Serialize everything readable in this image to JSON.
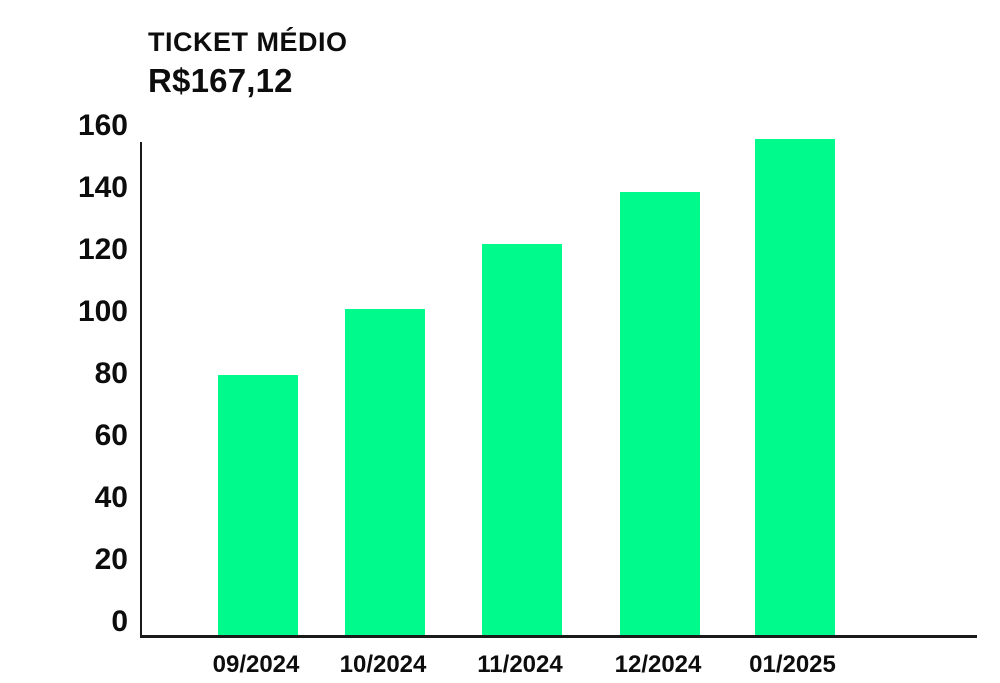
{
  "header": {
    "title": "TICKET MÉDIO",
    "value": "R$167,12"
  },
  "chart_data": {
    "type": "bar",
    "title": "TICKET MÉDIO",
    "subtitle_value": "R$167,12",
    "categories": [
      "09/2024",
      "10/2024",
      "11/2024",
      "12/2024",
      "01/2025"
    ],
    "values": [
      84,
      105,
      126,
      143,
      160
    ],
    "xlabel": "",
    "ylabel": "",
    "ylim": [
      0,
      160
    ],
    "yticks": [
      0,
      20,
      40,
      60,
      80,
      100,
      120,
      140,
      160
    ],
    "grid": false,
    "legend": false,
    "bar_color": "#00FA8B",
    "axis_color": "#1A1A1A",
    "text_color": "#0D0D0D"
  }
}
